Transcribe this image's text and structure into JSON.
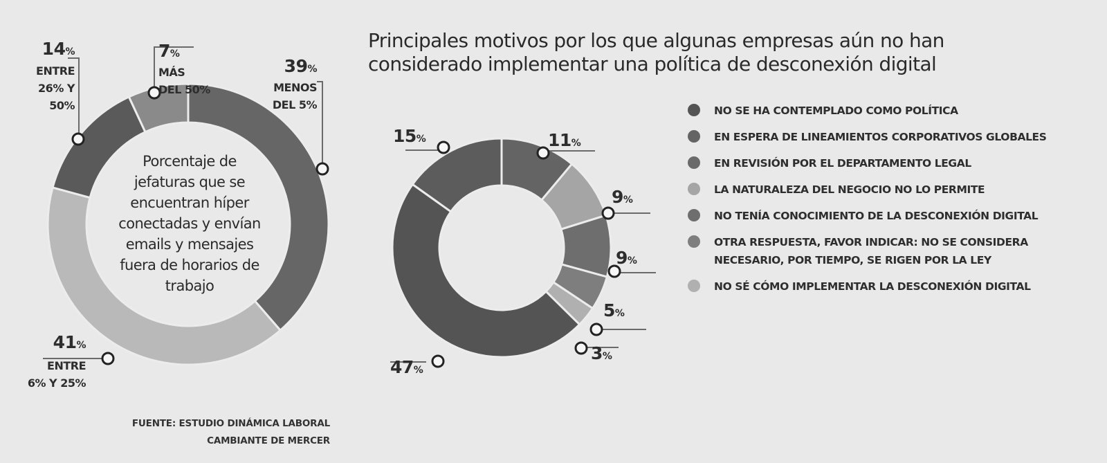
{
  "chart_data": [
    {
      "type": "pie",
      "variant": "donut",
      "title": "Porcentaje de jefaturas que se encuentran híper conectadas y envían emails y mensajes fuera de horarios de trabajo",
      "slices": [
        {
          "value": 39,
          "label": "39%",
          "description": [
            "MENOS",
            "DEL 5%"
          ],
          "color": "#666666"
        },
        {
          "value": 41,
          "label": "41%",
          "description": [
            "ENTRE",
            "6% Y 25%"
          ],
          "color": "#b9b9b9"
        },
        {
          "value": 14,
          "label": "14%",
          "description": [
            "ENTRE",
            "26% Y",
            "50%"
          ],
          "color": "#5a5a5a"
        },
        {
          "value": 7,
          "label": "7%",
          "description": [
            "MÁS",
            "DEL 50%"
          ],
          "color": "#8a8a8a"
        }
      ],
      "start": "top",
      "direction": "clockwise"
    },
    {
      "type": "pie",
      "variant": "donut",
      "title": "Principales motivos por los que algunas empresas aún no han considerado implementar una política de desconexión digital",
      "slices": [
        {
          "value": 11,
          "label": "11%",
          "legend": "EN ESPERA DE LINEAMIENTOS CORPORATIVOS GLOBALES",
          "color": "#646464"
        },
        {
          "value": 9,
          "label": "9%",
          "legend": "LA NATURALEZA DEL NEGOCIO NO LO PERMITE",
          "color": "#a5a5a5"
        },
        {
          "value": 9,
          "label": "9%",
          "legend": "NO TENÍA CONOCIMIENTO DE LA DESCONEXIÓN DIGITAL",
          "color": "#6e6e6e"
        },
        {
          "value": 5,
          "label": "5%",
          "legend": "OTRA RESPUESTA, FAVOR INDICAR: NO SE CONSIDERA NECESARIO, POR TIEMPO, SE RIGEN POR LA LEY",
          "color": "#7e7e7e"
        },
        {
          "value": 3,
          "label": "3%",
          "legend": "NO SÉ CÓMO IMPLEMENTAR LA DESCONEXIÓN DIGITAL",
          "color": "#b0b0b0"
        },
        {
          "value": 47,
          "label": "47%",
          "legend": "NO SE HA CONTEMPLADO COMO POLÍTICA",
          "color": "#545454"
        },
        {
          "value": 15,
          "label": "15%",
          "legend": "EN REVISIÓN POR EL DEPARTAMENTO LEGAL",
          "color": "#5c5c5c"
        }
      ],
      "start": "top",
      "direction": "clockwise",
      "legend_position": "right"
    }
  ],
  "left": {
    "center_text": [
      "Porcentaje de",
      "jefaturas que se",
      "encuentran híper",
      "conectadas y envían",
      "emails y mensajes",
      "fuera de horarios de",
      "trabajo"
    ],
    "source": [
      "FUENTE: ESTUDIO DINÁMICA LABORAL",
      "CAMBIANTE DE MERCER"
    ]
  },
  "right": {
    "title": [
      "Principales motivos por los que algunas empresas aún no han",
      "considerado implementar una política de desconexión digital"
    ],
    "legend": [
      {
        "text": "NO SE HA CONTEMPLADO COMO POLÍTICA",
        "color": "#545454"
      },
      {
        "text": "EN ESPERA DE LINEAMIENTOS CORPORATIVOS GLOBALES",
        "color": "#646464"
      },
      {
        "text": "EN REVISIÓN POR EL DEPARTAMENTO LEGAL",
        "color": "#6a6a6a"
      },
      {
        "text": "LA NATURALEZA DEL NEGOCIO NO LO PERMITE",
        "color": "#a5a5a5"
      },
      {
        "text": "NO TENÍA CONOCIMIENTO DE LA DESCONEXIÓN DIGITAL",
        "color": "#6e6e6e"
      },
      {
        "text": "OTRA RESPUESTA, FAVOR INDICAR: NO SE CONSIDERA NECESARIO, POR TIEMPO, SE RIGEN POR LA LEY",
        "color": "#7e7e7e"
      },
      {
        "text": "NO SÉ CÓMO IMPLEMENTAR LA DESCONEXIÓN DIGITAL",
        "color": "#b0b0b0"
      }
    ]
  }
}
